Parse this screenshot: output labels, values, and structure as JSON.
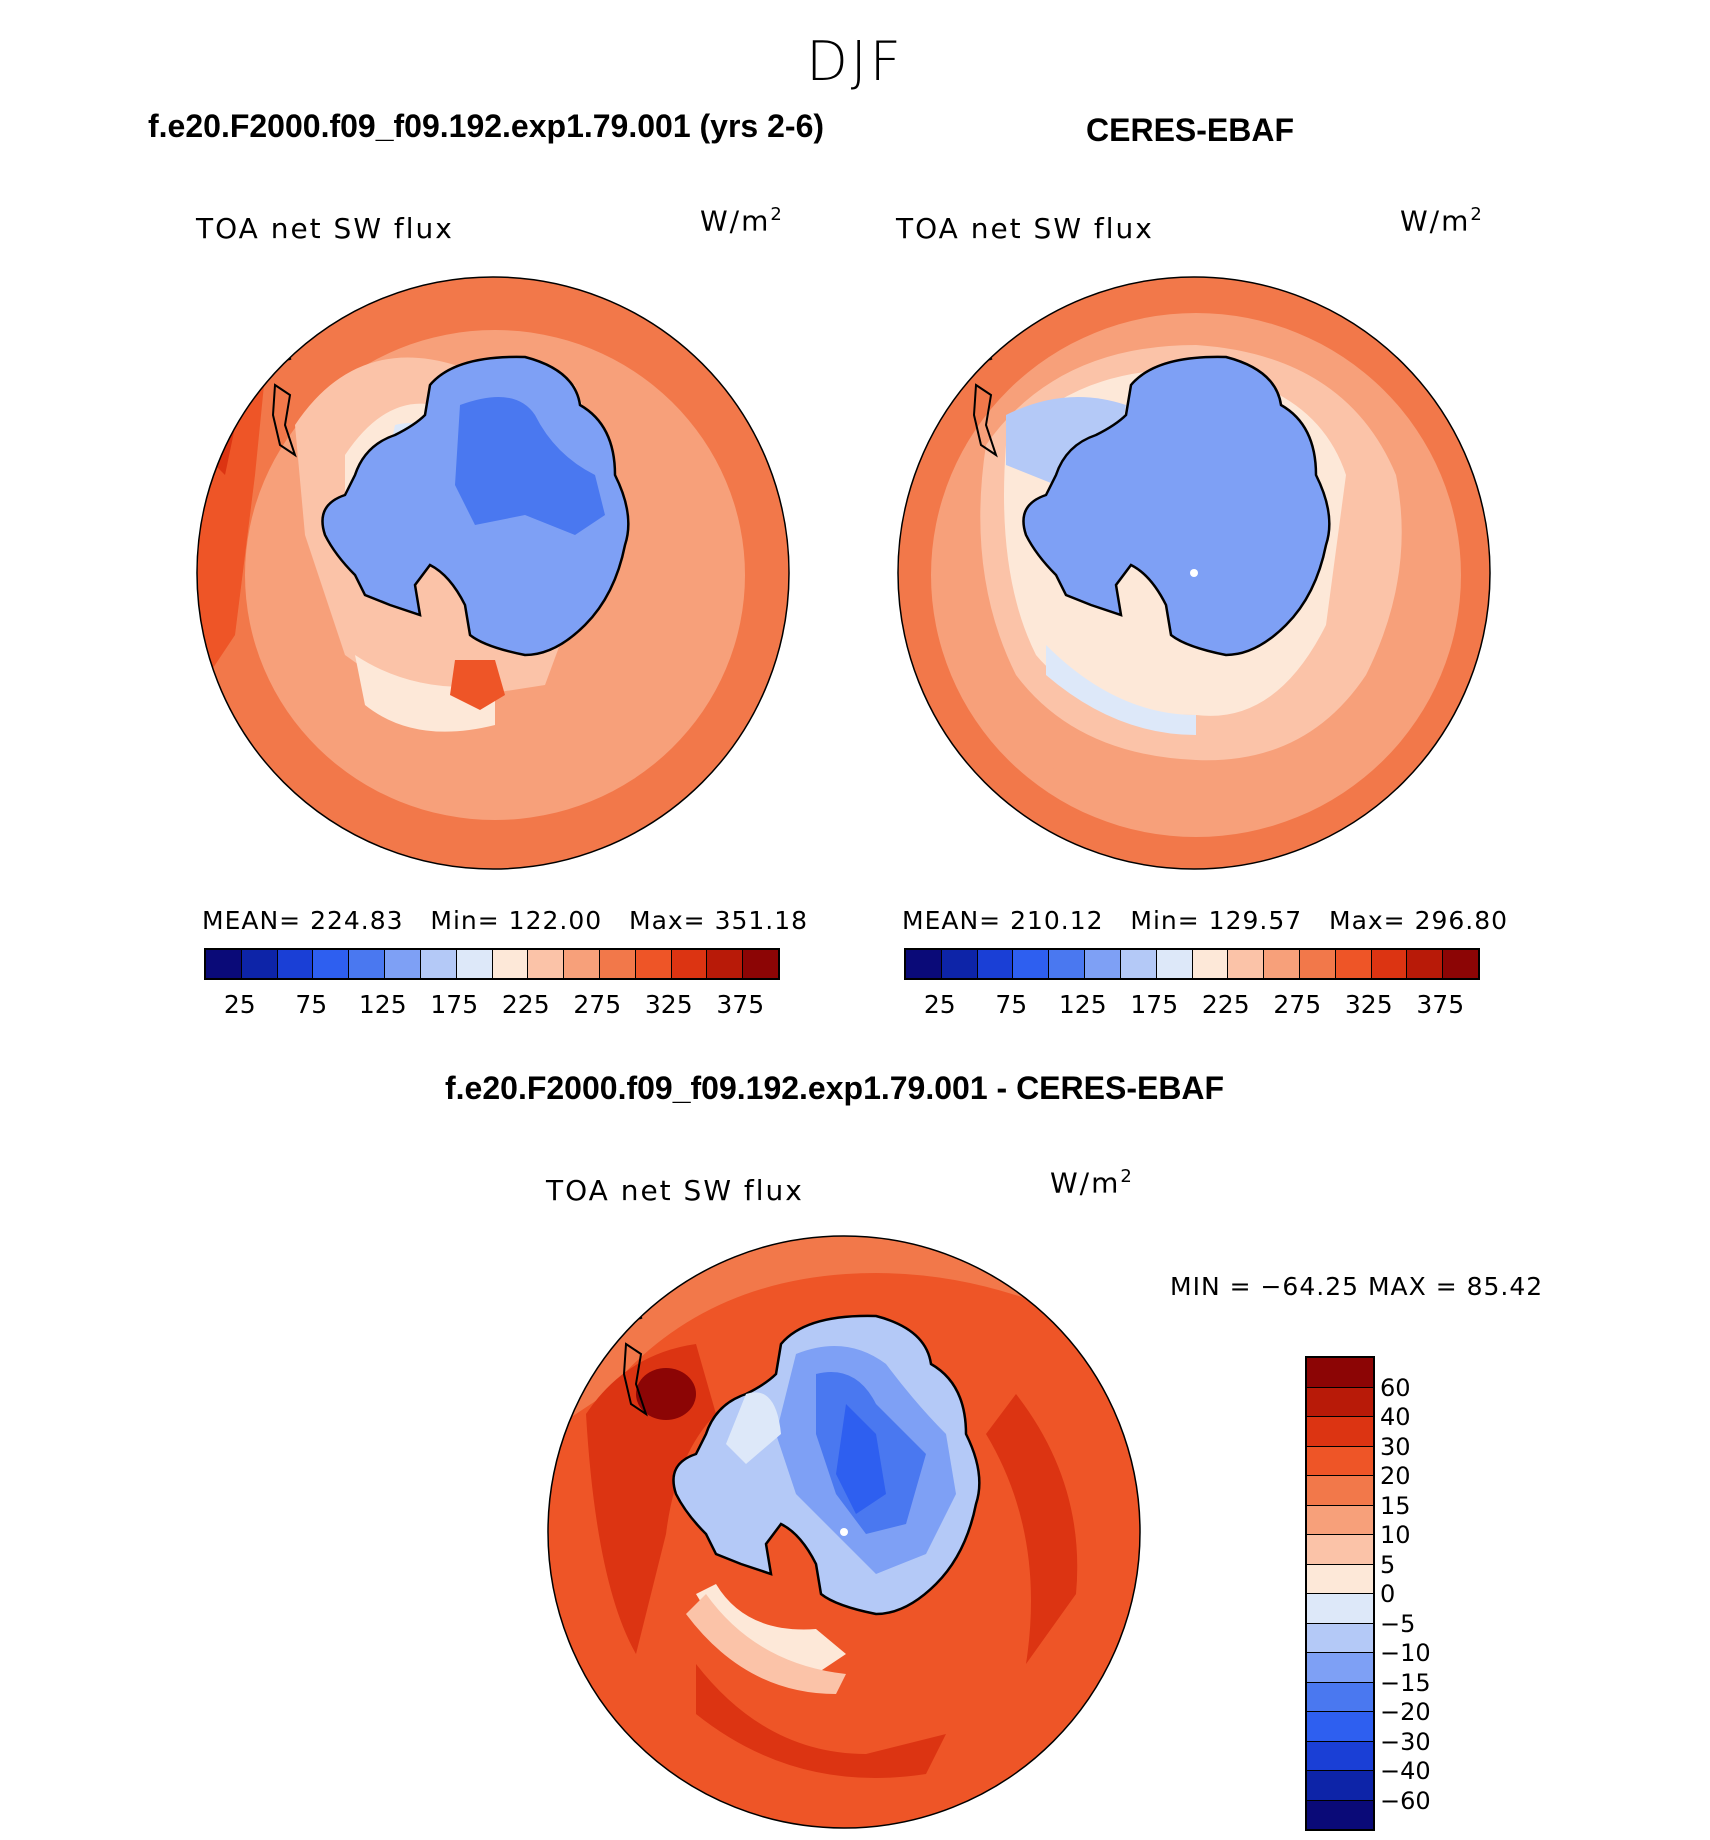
{
  "page": {
    "season": "DJF",
    "bottom_title": "f.e20.F2000.f09_f09.192.exp1.79.001 - CERES-EBAF"
  },
  "panels": {
    "model": {
      "title": "f.e20.F2000.f09_f09.192.exp1.79.001 (yrs 2-6)",
      "variable": "TOA net SW flux",
      "units": "W/m",
      "units_sup": "2",
      "mean_label": "MEAN=",
      "mean": "224.83",
      "min_label": "Min=",
      "min": "122.00",
      "max_label": "Max=",
      "max": "351.18"
    },
    "obs": {
      "title": "CERES-EBAF",
      "variable": "TOA net SW flux",
      "units": "W/m",
      "units_sup": "2",
      "mean_label": "MEAN=",
      "mean": "210.12",
      "min_label": "Min=",
      "min": "129.57",
      "max_label": "Max=",
      "max": "296.80"
    },
    "diff": {
      "variable": "TOA net SW flux",
      "units": "W/m",
      "units_sup": "2",
      "minmax_text": "MIN = −64.25 MAX =   85.42"
    }
  },
  "colorbars": {
    "absolute": {
      "colors": [
        "#0a0a78",
        "#0d24a8",
        "#1a3fd6",
        "#2e5ff0",
        "#4a78f0",
        "#7ea0f5",
        "#b4c9f7",
        "#dde8f9",
        "#fde8d8",
        "#fbc3a8",
        "#f7a07a",
        "#f2784a",
        "#ee5527",
        "#dc3412",
        "#b81a08",
        "#8c0505"
      ],
      "tick_labels": [
        "25",
        "75",
        "125",
        "175",
        "225",
        "275",
        "325",
        "375"
      ]
    },
    "difference": {
      "colors": [
        "#8c0505",
        "#b81a08",
        "#dc3412",
        "#ee5527",
        "#f2784a",
        "#f7a07a",
        "#fbc3a8",
        "#fde8d8",
        "#dde8f9",
        "#b4c9f7",
        "#7ea0f5",
        "#4a78f0",
        "#2e5ff0",
        "#1a3fd6",
        "#0d24a8",
        "#0a0a78"
      ],
      "tick_labels": [
        "60",
        "40",
        "30",
        "20",
        "15",
        "10",
        "5",
        "0",
        "−5",
        "−10",
        "−15",
        "−20",
        "−30",
        "−40",
        "−60"
      ]
    }
  }
}
